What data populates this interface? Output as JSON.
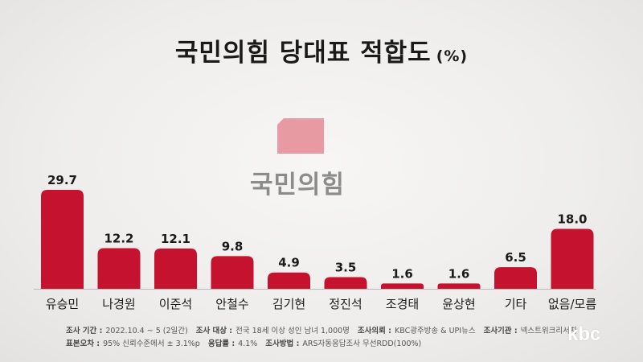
{
  "title": "국민의힘 당대표 적합도",
  "title_unit": "(%)",
  "logo_text": "국민의힘",
  "colors": {
    "bar": "#c4122f",
    "bar_dark": "#a50e26",
    "logo": "#e89aa3"
  },
  "chart_data": {
    "type": "bar",
    "categories": [
      "유승민",
      "나경원",
      "이준석",
      "안철수",
      "김기현",
      "정진석",
      "조경태",
      "윤상현",
      "기타",
      "없음/모름"
    ],
    "values": [
      29.7,
      12.2,
      12.1,
      9.8,
      4.9,
      3.5,
      1.6,
      1.6,
      6.5,
      18.0
    ],
    "value_labels": [
      "29.7",
      "12.2",
      "12.1",
      "9.8",
      "4.9",
      "3.5",
      "1.6",
      "1.6",
      "6.5",
      "18.0"
    ],
    "ylim": [
      0,
      30
    ],
    "grid": false
  },
  "footer": {
    "line1": [
      {
        "label": "조사 기간 :",
        "value": "2022.10.4 ~ 5 (2일간)"
      },
      {
        "label": "조사 대상 :",
        "value": "전국 18세 이상 성인 남녀 1,000명"
      },
      {
        "label": "조사의뢰 :",
        "value": "KBC광주방송 & UPI뉴스"
      },
      {
        "label": "조사기관 :",
        "value": "넥스트위크리서치"
      }
    ],
    "line2": [
      {
        "label": "표본오차 :",
        "value": "95% 신뢰수준에서 ± 3.1%p"
      },
      {
        "label": "응답률 :",
        "value": "4.1%"
      },
      {
        "label": "조사방법 :",
        "value": "ARS자동응답조사 무선RDD(100%)"
      }
    ]
  },
  "brand": "kbc"
}
